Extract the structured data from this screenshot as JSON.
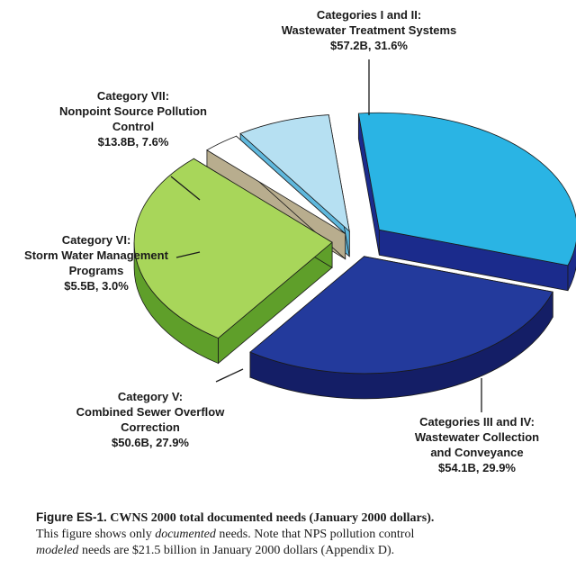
{
  "chart_data": {
    "type": "pie",
    "unit": "$B",
    "slices": [
      {
        "label_lines": [
          "Categories I and II:",
          "Wastewater Treatment Systems",
          "$57.2B, 31.6%"
        ],
        "value": 57.2,
        "percent": 31.6,
        "color": "#2ab4e4",
        "side": "#1b2b8c"
      },
      {
        "label_lines": [
          "Categories III and IV:",
          "Wastewater Collection",
          "and Conveyance",
          "$54.1B, 29.9%"
        ],
        "value": 54.1,
        "percent": 29.9,
        "color": "#233a9c",
        "side": "#141e66"
      },
      {
        "label_lines": [
          "Category V:",
          "Combined Sewer Overflow",
          "Correction",
          "$50.6B, 27.9%"
        ],
        "value": 50.6,
        "percent": 27.9,
        "color": "#a8d65a",
        "side": "#5f9f2a"
      },
      {
        "label_lines": [
          "Category VI:",
          "Storm Water Management",
          "Programs",
          "$5.5B, 3.0%"
        ],
        "value": 5.5,
        "percent": 3.0,
        "color": "#ffffff",
        "side": "#b8ad8e"
      },
      {
        "label_lines": [
          "Category VII:",
          "Nonpoint Source Pollution",
          "Control",
          "$13.8B, 7.6%"
        ],
        "value": 13.8,
        "percent": 7.6,
        "color": "#b6e0f2",
        "side": "#5fb8dd"
      }
    ]
  },
  "caption": {
    "figure": "Figure ES-1.",
    "title": "CWNS 2000 total documented needs (January 2000 dollars).",
    "line2_a": "This figure shows only ",
    "line2_em": "documented",
    "line2_b": " needs. Note that NPS pollution control",
    "line3_em": "modeled",
    "line3_b": " needs are $21.5 billion in January 2000 dollars (Appendix D)."
  }
}
